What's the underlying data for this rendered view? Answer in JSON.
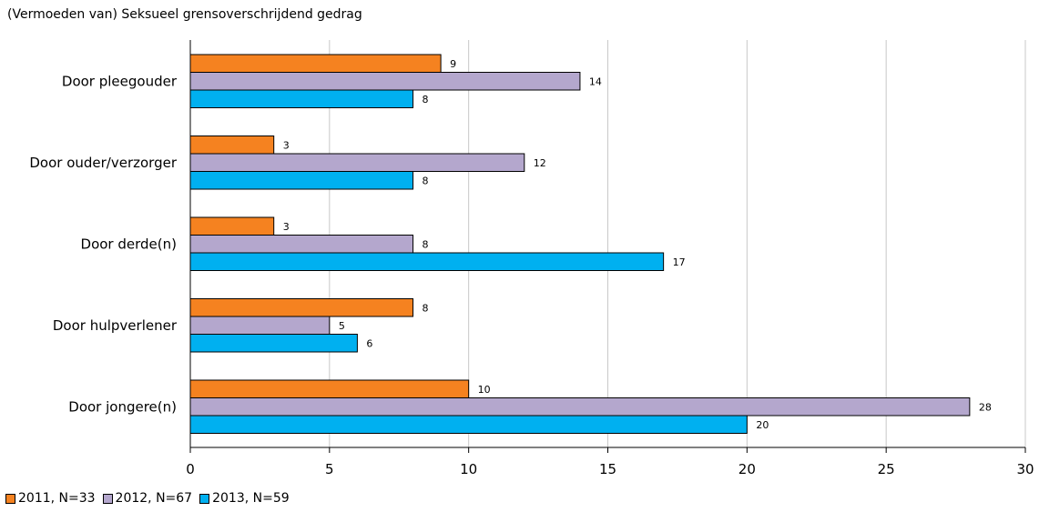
{
  "chart_data": {
    "type": "bar",
    "orientation": "horizontal",
    "title": "(Vermoeden van) Seksueel grensoverschrijdend gedrag",
    "categories": [
      "Door pleegouder",
      "Door ouder/verzorger",
      "Door derde(n)",
      "Door hulpverlener",
      "Door jongere(n)"
    ],
    "series": [
      {
        "name": "2011, N=33",
        "color": "#f58220",
        "values": [
          9,
          3,
          3,
          8,
          10
        ]
      },
      {
        "name": "2012, N=67",
        "color": "#b4a7cd",
        "values": [
          14,
          12,
          8,
          5,
          28
        ]
      },
      {
        "name": "2013, N=59",
        "color": "#00b0f0",
        "values": [
          8,
          8,
          17,
          6,
          20
        ]
      }
    ],
    "xlim": [
      0,
      30
    ],
    "xticks": [
      0,
      5,
      10,
      15,
      20,
      25,
      30
    ],
    "grid": true,
    "legend_position": "bottom-left"
  }
}
